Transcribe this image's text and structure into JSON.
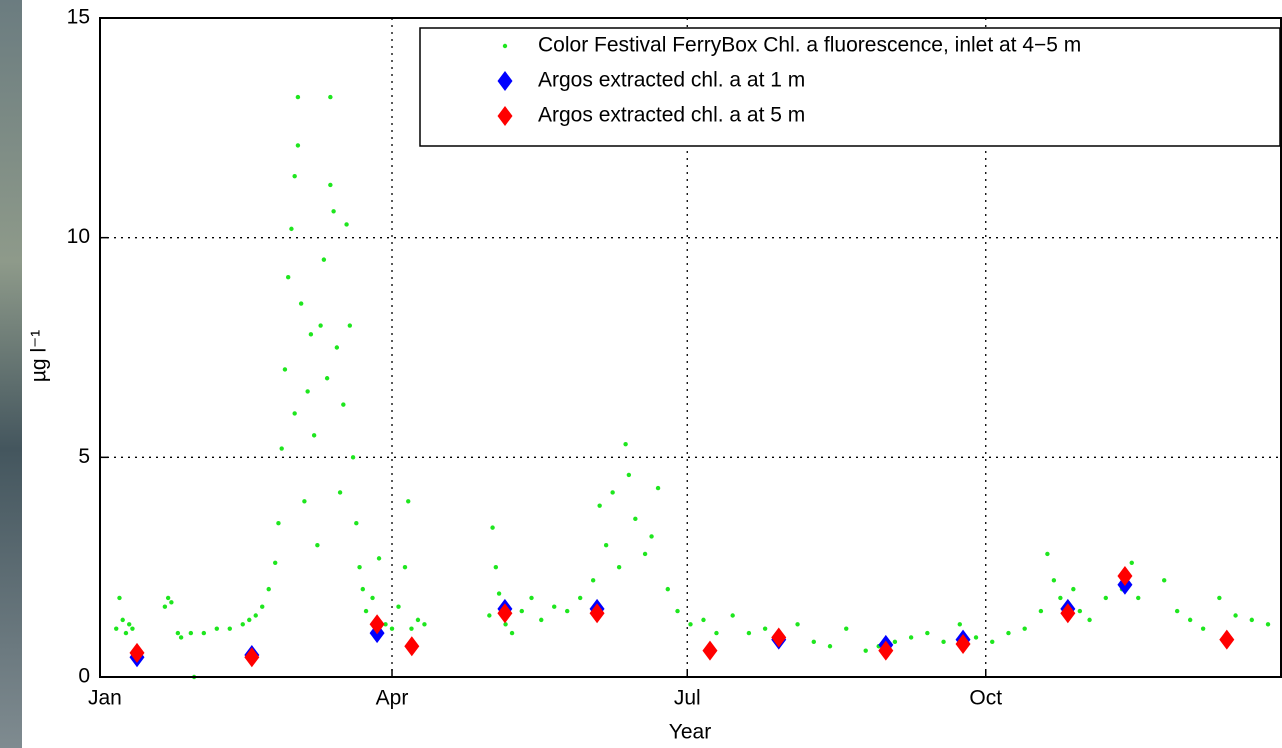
{
  "chart_data": {
    "type": "scatter",
    "x_label": "Year",
    "y_label": "µg l⁻¹",
    "xlim": [
      0,
      364
    ],
    "ylim": [
      0,
      15
    ],
    "xticks": [
      {
        "value": 0,
        "label": "Jan"
      },
      {
        "value": 90,
        "label": "Apr"
      },
      {
        "value": 181,
        "label": "Jul"
      },
      {
        "value": 273,
        "label": "Oct"
      }
    ],
    "yticks": [
      0,
      5,
      10,
      15
    ],
    "grid": true,
    "legend": "top-right",
    "series": [
      {
        "name": "Color Festival FerryBox Chl. a fluorescence, inlet at 4−5 m",
        "color": "#1ee61e",
        "marker": "dot",
        "x": [
          5,
          6,
          7,
          8,
          9,
          10,
          20,
          21,
          22,
          24,
          29,
          25,
          28,
          32,
          36,
          40,
          44,
          46,
          48,
          50,
          52,
          54,
          55,
          56,
          57,
          58,
          59,
          60,
          60,
          61,
          61,
          62,
          63,
          64,
          65,
          66,
          67,
          68,
          69,
          70,
          71,
          71,
          72,
          73,
          74,
          75,
          76,
          77,
          78,
          79,
          80,
          81,
          82,
          84,
          86,
          88,
          90,
          92,
          94,
          95,
          96,
          98,
          100,
          120,
          121,
          122,
          123,
          125,
          127,
          130,
          133,
          136,
          140,
          144,
          148,
          152,
          154,
          156,
          158,
          160,
          162,
          163,
          165,
          168,
          170,
          172,
          175,
          178,
          182,
          186,
          190,
          195,
          200,
          205,
          210,
          215,
          220,
          225,
          230,
          236,
          240,
          245,
          250,
          255,
          260,
          265,
          270,
          275,
          280,
          285,
          290,
          292,
          294,
          296,
          298,
          300,
          302,
          305,
          310,
          315,
          318,
          320,
          328,
          332,
          336,
          340,
          345,
          350,
          355,
          360
        ],
        "values": [
          1.1,
          1.8,
          1.3,
          1.0,
          1.2,
          1.1,
          1.6,
          1.8,
          1.7,
          1.0,
          0.0,
          0.9,
          1.0,
          1.0,
          1.1,
          1.1,
          1.2,
          1.3,
          1.4,
          1.6,
          2.0,
          2.6,
          3.5,
          5.2,
          7.0,
          9.1,
          10.2,
          11.4,
          6.0,
          13.2,
          12.1,
          8.5,
          4.0,
          6.5,
          7.8,
          5.5,
          3.0,
          8.0,
          9.5,
          6.8,
          13.2,
          11.2,
          10.6,
          7.5,
          4.2,
          6.2,
          10.3,
          8.0,
          5.0,
          3.5,
          2.5,
          2.0,
          1.5,
          1.8,
          2.7,
          1.2,
          1.1,
          1.6,
          2.5,
          4.0,
          1.1,
          1.3,
          1.2,
          1.4,
          3.4,
          2.5,
          1.9,
          1.2,
          1.0,
          1.5,
          1.8,
          1.3,
          1.6,
          1.5,
          1.8,
          2.2,
          3.9,
          3.0,
          4.2,
          2.5,
          5.3,
          4.6,
          3.6,
          2.8,
          3.2,
          4.3,
          2.0,
          1.5,
          1.2,
          1.3,
          1.0,
          1.4,
          1.0,
          1.1,
          0.9,
          1.2,
          0.8,
          0.7,
          1.1,
          0.6,
          0.7,
          0.8,
          0.9,
          1.0,
          0.8,
          1.2,
          0.9,
          0.8,
          1.0,
          1.1,
          1.5,
          2.8,
          2.2,
          1.8,
          1.4,
          2.0,
          1.5,
          1.3,
          1.8,
          2.0,
          2.6,
          1.8,
          2.2,
          1.5,
          1.3,
          1.1,
          1.8,
          1.4,
          1.3,
          1.2
        ]
      },
      {
        "name": "Argos extracted chl. a at 1 m",
        "color": "#0000ff",
        "marker": "diamond",
        "x": [
          11.4,
          46.8,
          85.4,
          124.8,
          153.2,
          209.2,
          242.2,
          266,
          298.3,
          315.9
        ],
        "values": [
          0.45,
          0.5,
          1.0,
          1.55,
          1.55,
          0.85,
          0.73,
          0.85,
          1.55,
          2.1
        ]
      },
      {
        "name": "Argos extracted chl. a at 5 m",
        "color": "#ff0000",
        "marker": "diamond",
        "x": [
          11.4,
          46.8,
          85.4,
          96.1,
          124.8,
          153.2,
          188,
          209.2,
          242.2,
          266,
          298.3,
          315.9,
          347.3
        ],
        "values": [
          0.55,
          0.45,
          1.2,
          0.7,
          1.45,
          1.45,
          0.6,
          0.9,
          0.6,
          0.75,
          1.45,
          2.3,
          0.85
        ]
      }
    ]
  }
}
